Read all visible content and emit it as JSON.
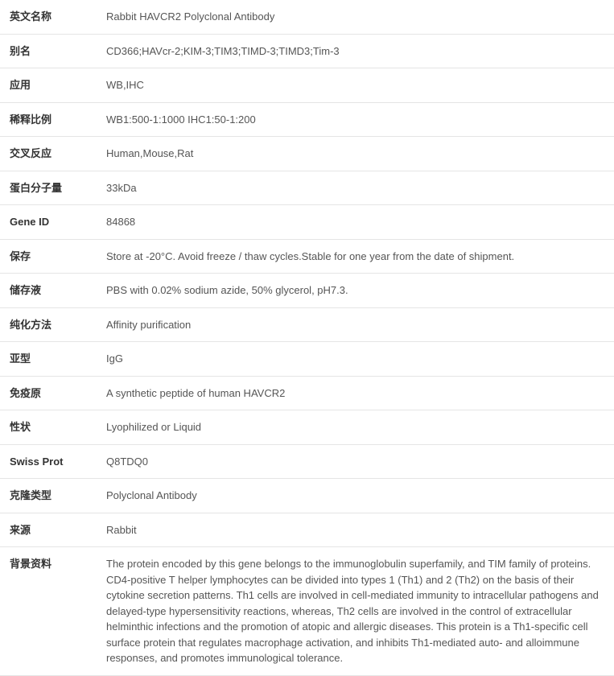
{
  "rows": [
    {
      "label": "英文名称",
      "value": "Rabbit HAVCR2 Polyclonal Antibody"
    },
    {
      "label": "别名",
      "value": "CD366;HAVcr-2;KIM-3;TIM3;TIMD-3;TIMD3;Tim-3"
    },
    {
      "label": "应用",
      "value": "WB,IHC"
    },
    {
      "label": "稀释比例",
      "value": "WB1:500-1:1000 IHC1:50-1:200"
    },
    {
      "label": "交叉反应",
      "value": "Human,Mouse,Rat"
    },
    {
      "label": "蛋白分子量",
      "value": "33kDa"
    },
    {
      "label": "Gene ID",
      "value": "84868"
    },
    {
      "label": "保存",
      "value": "Store at -20°C. Avoid freeze / thaw cycles.Stable for one year from the date of shipment."
    },
    {
      "label": "储存液",
      "value": "PBS with 0.02% sodium azide, 50% glycerol, pH7.3."
    },
    {
      "label": "纯化方法",
      "value": "Affinity purification"
    },
    {
      "label": "亚型",
      "value": "IgG"
    },
    {
      "label": "免疫原",
      "value": "A synthetic peptide of human HAVCR2"
    },
    {
      "label": "性状",
      "value": "Lyophilized or Liquid"
    },
    {
      "label": "Swiss Prot",
      "value": "Q8TDQ0"
    },
    {
      "label": "克隆类型",
      "value": "Polyclonal Antibody"
    },
    {
      "label": "来源",
      "value": "Rabbit"
    },
    {
      "label": "背景资料",
      "value": "The protein encoded by this gene belongs to the immunoglobulin superfamily, and TIM family of proteins. CD4-positive T helper lymphocytes can be divided into types 1 (Th1) and 2 (Th2) on the basis of their cytokine secretion patterns. Th1 cells are involved in cell-mediated immunity to intracellular pathogens and delayed-type hypersensitivity reactions, whereas, Th2 cells are involved in the control of extracellular helminthic infections and the promotion of atopic and allergic diseases. This protein is a Th1-specific cell surface protein that regulates macrophage activation, and inhibits Th1-mediated auto- and alloimmune responses, and promotes immunological tolerance."
    }
  ],
  "styling": {
    "body_width": 763,
    "font_family": "Microsoft YaHei, Segoe UI, Arial, sans-serif",
    "font_size": 13,
    "text_color": "#333333",
    "value_color": "#555555",
    "background_color": "#ffffff",
    "border_color": "#e5e5e5",
    "label_column_width": 120,
    "cell_padding": "11px 8px 11px 12px",
    "line_height": 1.5,
    "label_font_weight": "bold"
  }
}
